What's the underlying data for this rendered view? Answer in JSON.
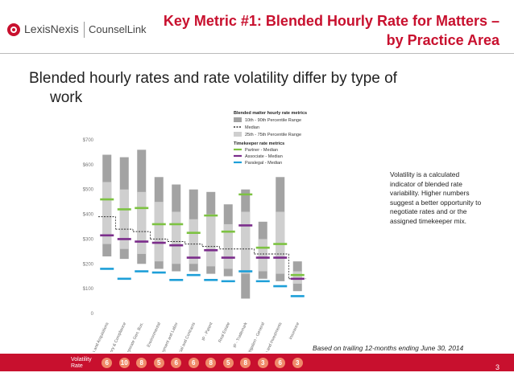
{
  "header": {
    "logo_brand": "LexisNexis",
    "logo_product": "CounselLink",
    "title_line1": "Key Metric #1: Blended Hourly Rate for Matters –",
    "title_line2": "by Practice Area"
  },
  "subtitle_line1": "Blended hourly rates and rate volatility differ by type of",
  "subtitle_line2": "work",
  "note": "Volatility is a calculated indicator of blended rate variability. Higher numbers suggest a better opportunity to negotiate rates and or the assigned timekeeper mix.",
  "footnote": "Based on trailing 12-months ending June 30, 2014",
  "page_number": "3",
  "volatility_label_line1": "Volatility",
  "volatility_label_line2": "Rate",
  "colors": {
    "accent": "#c8102e",
    "range_outer": "#a3a3a3",
    "range_inner": "#cfcfcf",
    "partner": "#7dc242",
    "associate": "#7b2d8b",
    "paralegal": "#1e9fd8",
    "median": "#333333"
  },
  "chart_data": {
    "type": "bar",
    "title": "",
    "ylim": [
      0,
      700
    ],
    "y_ticks": [
      "0",
      "$100",
      "$200",
      "$300",
      "$400",
      "$500",
      "$600",
      "$700"
    ],
    "y_tick_values": [
      0,
      100,
      200,
      300,
      400,
      500,
      600,
      700
    ],
    "categories": [
      "Mergers and Acquisitions",
      "Regulatory & Compliance",
      "Corporate Gen. Bus.",
      "Environmental",
      "Employment and Labor",
      "Commercial and Contracts",
      "IP - Patent",
      "Real Estate",
      "IP - Trademark",
      "Litigation - General",
      "Finance, Loans and Investments",
      "Insurance"
    ],
    "legend": {
      "group1_title": "Blended matter hourly rate metrics",
      "group1_items": [
        "10th - 90th Percentile Range",
        "Median",
        "25th - 75th Percentile Range"
      ],
      "group2_title": "Timekeeper rate metrics",
      "group2_items": [
        "Partner - Median",
        "Associate - Median",
        "Paralegal - Median"
      ]
    },
    "series": [
      {
        "name": "10th - 90th Percentile Range",
        "low": [
          230,
          220,
          200,
          180,
          170,
          170,
          160,
          150,
          60,
          140,
          130,
          90
        ],
        "high": [
          640,
          630,
          660,
          550,
          520,
          500,
          490,
          440,
          500,
          370,
          550,
          210
        ]
      },
      {
        "name": "25th - 75th Percentile Range",
        "low": [
          280,
          260,
          240,
          210,
          200,
          200,
          190,
          180,
          160,
          170,
          160,
          120
        ],
        "high": [
          530,
          500,
          490,
          450,
          410,
          380,
          400,
          360,
          410,
          300,
          410,
          170
        ]
      },
      {
        "name": "Median",
        "values": [
          390,
          340,
          330,
          300,
          290,
          280,
          270,
          260,
          260,
          240,
          240,
          140
        ]
      },
      {
        "name": "Partner - Median",
        "values": [
          460,
          420,
          425,
          360,
          360,
          325,
          395,
          330,
          480,
          265,
          280,
          155
        ]
      },
      {
        "name": "Associate - Median",
        "values": [
          315,
          300,
          290,
          285,
          275,
          225,
          255,
          225,
          355,
          225,
          225,
          140
        ]
      },
      {
        "name": "Paralegal - Median",
        "values": [
          180,
          140,
          170,
          165,
          135,
          155,
          135,
          130,
          170,
          130,
          110,
          70
        ]
      }
    ],
    "volatility": [
      6,
      10,
      8,
      5,
      6,
      6,
      8,
      5,
      8,
      3,
      6,
      3
    ]
  }
}
